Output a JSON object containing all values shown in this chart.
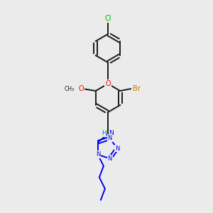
{
  "background_color": "#ebebeb",
  "bond_color": "#1a1a1a",
  "atom_colors": {
    "Cl": "#00bb00",
    "Br": "#cc7700",
    "O": "#ff0000",
    "N": "#0000ee",
    "H": "#008888",
    "C": "#1a1a1a"
  },
  "figsize": [
    3.0,
    3.0
  ],
  "dpi": 100
}
